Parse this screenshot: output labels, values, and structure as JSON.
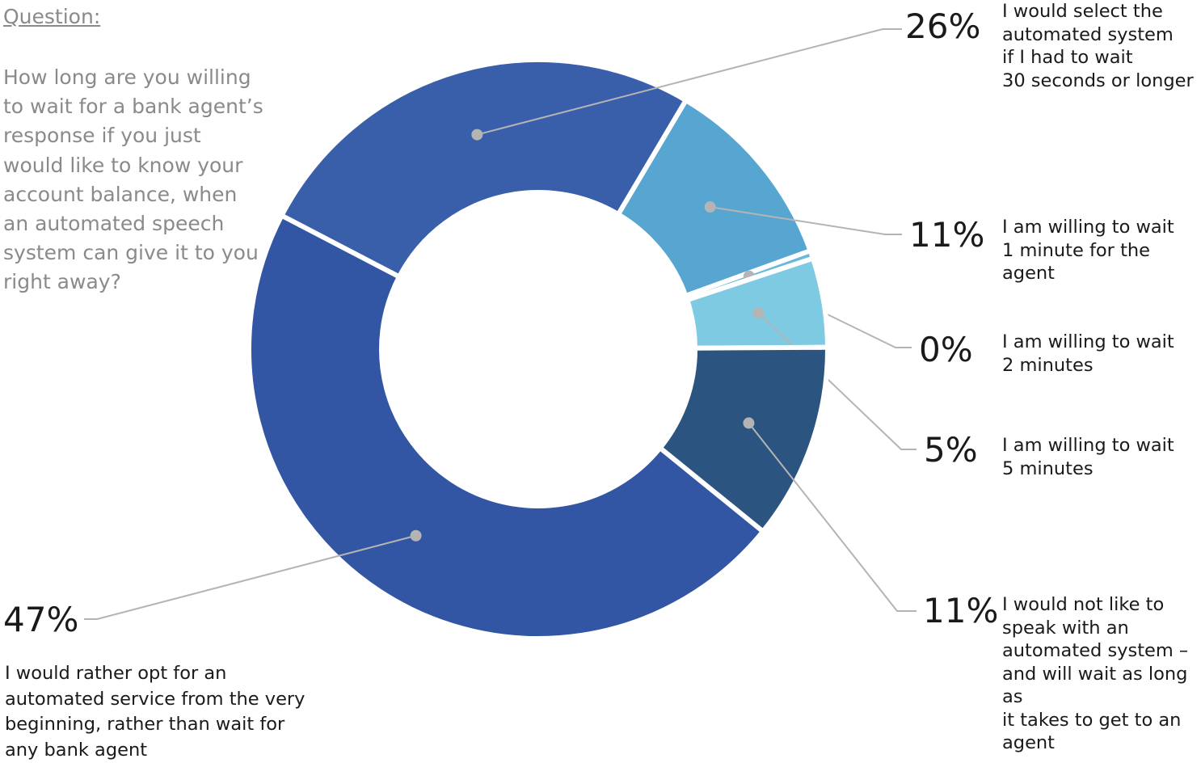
{
  "question": {
    "heading": "Question:",
    "text": "How long are you willing\nto wait for a bank agent’s\nresponse if you just\nwould like to know your\naccount balance, when\nan automated speech\nsystem can give it to you\nright away?"
  },
  "chart_data": {
    "type": "pie",
    "donut": true,
    "slices": [
      {
        "percent_label": "26%",
        "value": 26,
        "color": "#3a5faa",
        "label": "I would select the\nautomated system\nif I had to wait\n30 seconds or longer"
      },
      {
        "percent_label": "11%",
        "value": 11,
        "color": "#57a6d1",
        "label": "I am willing  to wait\n1 minute for the agent"
      },
      {
        "percent_label": "0%",
        "value": 0,
        "color": "#6bb8dd",
        "label": "I am willing to wait\n2 minutes"
      },
      {
        "percent_label": "5%",
        "value": 5,
        "color": "#7ecae3",
        "label": "I am willing to wait\n5 minutes"
      },
      {
        "percent_label": "11%",
        "value": 11,
        "color": "#2b5580",
        "label": "I would not like to\nspeak with an\nautomated system –\nand will wait as long as\nit takes to get to an\nagent"
      },
      {
        "percent_label": "47%",
        "value": 47,
        "color": "#3255a4",
        "label": "I would rather opt for an\nautomated service from the very\nbeginning, rather than wait for\nany bank agent"
      }
    ]
  }
}
